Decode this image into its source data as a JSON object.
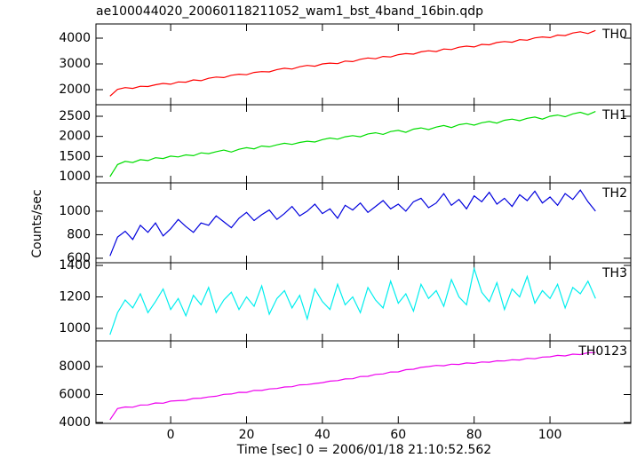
{
  "chart_data": [
    {
      "type": "line",
      "title": "ae100044020_20060118211052_wam1_bst_4band_16bin.qdp",
      "xlim": [
        -19.7,
        121.3
      ],
      "ylim": [
        1414,
        4552
      ],
      "yticks": [
        2000,
        3000,
        4000
      ],
      "series": [
        {
          "name": "TH0",
          "color": "#ff0000",
          "x": [
            -16,
            -14,
            -12,
            -10,
            -8,
            -6,
            -4,
            -2,
            0,
            2,
            4,
            6,
            8,
            10,
            12,
            14,
            16,
            18,
            20,
            22,
            24,
            26,
            28,
            30,
            32,
            34,
            36,
            38,
            40,
            42,
            44,
            46,
            48,
            50,
            52,
            54,
            56,
            58,
            60,
            62,
            64,
            66,
            68,
            70,
            72,
            74,
            76,
            78,
            80,
            82,
            84,
            86,
            88,
            90,
            92,
            94,
            96,
            98,
            100,
            102,
            104,
            106,
            108,
            110,
            112
          ],
          "values": [
            1750,
            2010,
            2080,
            2050,
            2130,
            2120,
            2190,
            2240,
            2210,
            2300,
            2290,
            2380,
            2350,
            2440,
            2490,
            2470,
            2560,
            2600,
            2580,
            2670,
            2700,
            2690,
            2780,
            2830,
            2800,
            2890,
            2940,
            2910,
            3000,
            3030,
            3010,
            3110,
            3090,
            3180,
            3230,
            3200,
            3290,
            3270,
            3360,
            3400,
            3380,
            3470,
            3510,
            3480,
            3580,
            3560,
            3650,
            3690,
            3660,
            3760,
            3740,
            3830,
            3870,
            3840,
            3940,
            3920,
            4010,
            4050,
            4020,
            4120,
            4100,
            4200,
            4250,
            4180,
            4300
          ]
        }
      ]
    },
    {
      "type": "line",
      "xlim": [
        -19.7,
        121.3
      ],
      "ylim": [
        845,
        2787
      ],
      "yticks": [
        1000,
        1500,
        2000,
        2500
      ],
      "series": [
        {
          "name": "TH1",
          "color": "#00dd00",
          "x": [
            -16,
            -14,
            -12,
            -10,
            -8,
            -6,
            -4,
            -2,
            0,
            2,
            4,
            6,
            8,
            10,
            12,
            14,
            16,
            18,
            20,
            22,
            24,
            26,
            28,
            30,
            32,
            34,
            36,
            38,
            40,
            42,
            44,
            46,
            48,
            50,
            52,
            54,
            56,
            58,
            60,
            62,
            64,
            66,
            68,
            70,
            72,
            74,
            76,
            78,
            80,
            82,
            84,
            86,
            88,
            90,
            92,
            94,
            96,
            98,
            100,
            102,
            104,
            106,
            108,
            110,
            112
          ],
          "values": [
            1000,
            1300,
            1380,
            1350,
            1420,
            1400,
            1470,
            1450,
            1510,
            1490,
            1540,
            1520,
            1590,
            1570,
            1620,
            1660,
            1610,
            1680,
            1720,
            1690,
            1760,
            1740,
            1790,
            1830,
            1800,
            1850,
            1880,
            1860,
            1920,
            1960,
            1930,
            1990,
            2020,
            1990,
            2060,
            2090,
            2050,
            2120,
            2150,
            2100,
            2180,
            2210,
            2170,
            2230,
            2270,
            2220,
            2290,
            2320,
            2280,
            2340,
            2370,
            2330,
            2400,
            2430,
            2390,
            2450,
            2480,
            2430,
            2500,
            2530,
            2490,
            2560,
            2600,
            2540,
            2620
          ]
        }
      ]
    },
    {
      "type": "line",
      "ylabel": "Counts/sec",
      "xlim": [
        -19.7,
        121.3
      ],
      "ylim": [
        562,
        1241
      ],
      "yticks": [
        600,
        800,
        1000
      ],
      "series": [
        {
          "name": "TH2",
          "color": "#0000dd",
          "x": [
            -16,
            -14,
            -12,
            -10,
            -8,
            -6,
            -4,
            -2,
            0,
            2,
            4,
            6,
            8,
            10,
            12,
            14,
            16,
            18,
            20,
            22,
            24,
            26,
            28,
            30,
            32,
            34,
            36,
            38,
            40,
            42,
            44,
            46,
            48,
            50,
            52,
            54,
            56,
            58,
            60,
            62,
            64,
            66,
            68,
            70,
            72,
            74,
            76,
            78,
            80,
            82,
            84,
            86,
            88,
            90,
            92,
            94,
            96,
            98,
            100,
            102,
            104,
            106,
            108,
            110,
            112
          ],
          "values": [
            620,
            780,
            830,
            760,
            880,
            820,
            900,
            790,
            850,
            930,
            870,
            820,
            900,
            880,
            960,
            910,
            860,
            940,
            990,
            920,
            970,
            1010,
            930,
            980,
            1040,
            960,
            1000,
            1060,
            980,
            1020,
            940,
            1050,
            1010,
            1070,
            990,
            1040,
            1090,
            1020,
            1060,
            1000,
            1080,
            1110,
            1030,
            1070,
            1150,
            1050,
            1100,
            1020,
            1130,
            1080,
            1160,
            1060,
            1110,
            1040,
            1140,
            1090,
            1170,
            1070,
            1120,
            1050,
            1150,
            1100,
            1180,
            1080,
            1000
          ]
        }
      ]
    },
    {
      "type": "line",
      "xlim": [
        -19.7,
        121.3
      ],
      "ylim": [
        921,
        1417
      ],
      "yticks": [
        1000,
        1200,
        1400
      ],
      "series": [
        {
          "name": "TH3",
          "color": "#00eeee",
          "x": [
            -16,
            -14,
            -12,
            -10,
            -8,
            -6,
            -4,
            -2,
            0,
            2,
            4,
            6,
            8,
            10,
            12,
            14,
            16,
            18,
            20,
            22,
            24,
            26,
            28,
            30,
            32,
            34,
            36,
            38,
            40,
            42,
            44,
            46,
            48,
            50,
            52,
            54,
            56,
            58,
            60,
            62,
            64,
            66,
            68,
            70,
            72,
            74,
            76,
            78,
            80,
            82,
            84,
            86,
            88,
            90,
            92,
            94,
            96,
            98,
            100,
            102,
            104,
            106,
            108,
            110,
            112
          ],
          "values": [
            960,
            1100,
            1180,
            1130,
            1220,
            1100,
            1170,
            1250,
            1120,
            1190,
            1080,
            1210,
            1150,
            1260,
            1100,
            1180,
            1230,
            1120,
            1200,
            1140,
            1270,
            1090,
            1190,
            1240,
            1130,
            1210,
            1060,
            1250,
            1170,
            1120,
            1280,
            1150,
            1200,
            1100,
            1260,
            1180,
            1130,
            1300,
            1160,
            1220,
            1110,
            1280,
            1190,
            1240,
            1140,
            1310,
            1200,
            1150,
            1380,
            1230,
            1170,
            1290,
            1120,
            1250,
            1200,
            1330,
            1160,
            1240,
            1190,
            1280,
            1130,
            1260,
            1220,
            1300,
            1190
          ]
        }
      ]
    },
    {
      "type": "line",
      "xlabel": "Time [sec] 0 = 2006/01/18 21:10:52.562",
      "xlim": [
        -19.7,
        121.3
      ],
      "xticks": [
        0,
        20,
        40,
        60,
        80,
        100
      ],
      "ylim": [
        3937,
        9841
      ],
      "yticks": [
        4000,
        6000,
        8000
      ],
      "series": [
        {
          "name": "TH0123",
          "color": "#ee00ee",
          "x": [
            -16,
            -14,
            -12,
            -10,
            -8,
            -6,
            -4,
            -2,
            0,
            2,
            4,
            6,
            8,
            10,
            12,
            14,
            16,
            18,
            20,
            22,
            24,
            26,
            28,
            30,
            32,
            34,
            36,
            38,
            40,
            42,
            44,
            46,
            48,
            50,
            52,
            54,
            56,
            58,
            60,
            62,
            64,
            66,
            68,
            70,
            72,
            74,
            76,
            78,
            80,
            82,
            84,
            86,
            88,
            90,
            92,
            94,
            96,
            98,
            100,
            102,
            104,
            106,
            108,
            110,
            112
          ],
          "values": [
            4200,
            5000,
            5110,
            5090,
            5250,
            5260,
            5400,
            5380,
            5530,
            5560,
            5590,
            5720,
            5740,
            5830,
            5880,
            6010,
            6040,
            6160,
            6150,
            6300,
            6290,
            6400,
            6430,
            6540,
            6560,
            6690,
            6710,
            6790,
            6850,
            6960,
            7000,
            7120,
            7130,
            7290,
            7300,
            7440,
            7470,
            7610,
            7620,
            7780,
            7810,
            7940,
            8000,
            8080,
            8060,
            8170,
            8150,
            8260,
            8230,
            8330,
            8310,
            8410,
            8400,
            8490,
            8470,
            8590,
            8560,
            8680,
            8700,
            8800,
            8760,
            8890,
            8860,
            8990,
            9000
          ]
        }
      ]
    }
  ]
}
